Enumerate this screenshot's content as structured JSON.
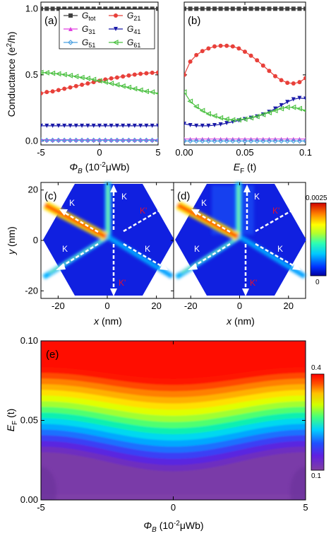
{
  "chart_data": [
    {
      "panel": "(a)",
      "type": "line",
      "xlabel": "Φ_B (10⁻²μWb)",
      "ylabel": "Conductance (e²/h)",
      "xlim": [
        -5,
        5
      ],
      "ylim": [
        -0.03,
        1.05
      ],
      "xticks": [
        "-5",
        "0",
        "5"
      ],
      "yticks": [
        "0.0",
        "0.5",
        "1.0"
      ],
      "legend": "top",
      "x": [
        -5,
        -4.5,
        -4,
        -3.5,
        -3,
        -2.5,
        -2,
        -1.5,
        -1,
        -0.5,
        0,
        0.5,
        1,
        1.5,
        2,
        2.5,
        3,
        3.5,
        4,
        4.5,
        5
      ],
      "series": [
        {
          "name": "G_tot",
          "color": "#404040",
          "marker": "square",
          "values": [
            1.0,
            1.0,
            1.0,
            1.0,
            1.0,
            1.0,
            1.0,
            1.0,
            1.0,
            1.0,
            1.0,
            1.0,
            1.0,
            1.0,
            1.0,
            1.0,
            1.0,
            1.0,
            1.0,
            1.0,
            1.0
          ]
        },
        {
          "name": "G_21",
          "color": "#e8403a",
          "marker": "circle",
          "values": [
            0.36,
            0.37,
            0.375,
            0.385,
            0.395,
            0.405,
            0.415,
            0.425,
            0.435,
            0.445,
            0.455,
            0.465,
            0.473,
            0.48,
            0.488,
            0.495,
            0.502,
            0.508,
            0.512,
            0.516,
            0.518
          ]
        },
        {
          "name": "G_31",
          "color": "#e040e0",
          "marker": "triangle-up",
          "values": [
            0.01,
            0.01,
            0.01,
            0.01,
            0.01,
            0.01,
            0.01,
            0.01,
            0.01,
            0.01,
            0.01,
            0.01,
            0.01,
            0.01,
            0.01,
            0.01,
            0.01,
            0.01,
            0.01,
            0.01,
            0.01
          ]
        },
        {
          "name": "G_41",
          "color": "#1a1aa8",
          "marker": "triangle-down",
          "values": [
            0.115,
            0.115,
            0.115,
            0.115,
            0.115,
            0.115,
            0.115,
            0.115,
            0.115,
            0.115,
            0.115,
            0.115,
            0.115,
            0.115,
            0.115,
            0.115,
            0.115,
            0.115,
            0.115,
            0.115,
            0.115
          ]
        },
        {
          "name": "G_51",
          "color": "#4aa0e0",
          "marker": "diamond",
          "values": [
            0.005,
            0.005,
            0.005,
            0.005,
            0.005,
            0.005,
            0.005,
            0.005,
            0.005,
            0.005,
            0.005,
            0.005,
            0.005,
            0.005,
            0.005,
            0.005,
            0.005,
            0.005,
            0.005,
            0.005,
            0.005
          ]
        },
        {
          "name": "G_61",
          "color": "#4ac040",
          "marker": "triangle-left",
          "values": [
            0.518,
            0.516,
            0.512,
            0.508,
            0.502,
            0.495,
            0.488,
            0.48,
            0.473,
            0.465,
            0.455,
            0.445,
            0.435,
            0.425,
            0.415,
            0.405,
            0.395,
            0.385,
            0.375,
            0.37,
            0.36
          ]
        }
      ]
    },
    {
      "panel": "(b)",
      "type": "line",
      "xlabel": "E_F (t)",
      "ylabel": "",
      "xlim": [
        0,
        0.1
      ],
      "ylim": [
        -0.03,
        1.05
      ],
      "xticks": [
        "0.00",
        "0.05",
        "0.1"
      ],
      "x": [
        0,
        0.005,
        0.01,
        0.015,
        0.02,
        0.025,
        0.03,
        0.035,
        0.04,
        0.045,
        0.05,
        0.055,
        0.06,
        0.065,
        0.07,
        0.075,
        0.08,
        0.085,
        0.09,
        0.095,
        0.1
      ],
      "series": [
        {
          "name": "G_tot",
          "color": "#404040",
          "values": [
            1.0,
            1.0,
            1.0,
            1.0,
            1.0,
            1.0,
            1.0,
            1.0,
            1.0,
            1.0,
            1.0,
            1.0,
            1.0,
            1.0,
            1.0,
            1.0,
            1.0,
            1.0,
            1.0,
            1.0,
            1.0
          ]
        },
        {
          "name": "G_21",
          "color": "#e8403a",
          "values": [
            0.5,
            0.6,
            0.65,
            0.68,
            0.7,
            0.715,
            0.72,
            0.72,
            0.715,
            0.7,
            0.675,
            0.645,
            0.61,
            0.57,
            0.53,
            0.49,
            0.46,
            0.44,
            0.435,
            0.445,
            0.475
          ]
        },
        {
          "name": "G_31",
          "color": "#e040e0",
          "values": [
            0.015,
            0.015,
            0.015,
            0.015,
            0.015,
            0.015,
            0.015,
            0.015,
            0.015,
            0.015,
            0.015,
            0.015,
            0.015,
            0.015,
            0.015,
            0.015,
            0.015,
            0.015,
            0.015,
            0.015,
            0.015
          ]
        },
        {
          "name": "G_41",
          "color": "#1a1aa8",
          "values": [
            0.13,
            0.12,
            0.115,
            0.115,
            0.115,
            0.12,
            0.125,
            0.135,
            0.145,
            0.155,
            0.165,
            0.175,
            0.185,
            0.2,
            0.22,
            0.245,
            0.27,
            0.295,
            0.315,
            0.325,
            0.32
          ]
        },
        {
          "name": "G_51",
          "color": "#4aa0e0",
          "values": [
            0.0,
            0.0,
            0.0,
            0.0,
            0.0,
            0.0,
            0.0,
            0.0,
            0.0,
            0.0,
            0.0,
            0.0,
            0.0,
            0.0,
            0.0,
            0.0,
            0.0,
            0.0,
            0.0,
            0.0,
            0.0
          ]
        },
        {
          "name": "G_61",
          "color": "#4ac040",
          "values": [
            0.37,
            0.3,
            0.26,
            0.23,
            0.205,
            0.19,
            0.175,
            0.165,
            0.16,
            0.16,
            0.165,
            0.175,
            0.185,
            0.2,
            0.215,
            0.23,
            0.245,
            0.255,
            0.255,
            0.245,
            0.23
          ]
        }
      ]
    },
    {
      "panel": "(c)",
      "type": "heatmap",
      "xlabel": "x (nm)",
      "ylabel": "y (nm)",
      "xlim": [
        -27,
        27
      ],
      "ylim": [
        -23,
        23
      ],
      "xticks": [
        "-20",
        "0",
        "20"
      ],
      "yticks": [
        "-20",
        "0",
        "20"
      ]
    },
    {
      "panel": "(d)",
      "type": "heatmap",
      "xlabel": "x (nm)",
      "xlim": [
        -27,
        27
      ],
      "ylim": [
        -23,
        23
      ],
      "xticks": [
        "-20",
        "0",
        "20"
      ],
      "colorbar": {
        "max": "0.0025",
        "min": "0"
      }
    },
    {
      "panel": "(e)",
      "type": "heatmap",
      "xlabel": "Φ_B (10⁻²μWb)",
      "ylabel": "E_F (t)",
      "xlim": [
        -5,
        5
      ],
      "ylim": [
        0,
        0.1
      ],
      "xticks": [
        "-5",
        "0",
        "5"
      ],
      "yticks": [
        "0.00",
        "0.05",
        "0.10"
      ],
      "colorbar": {
        "max": "0.4",
        "min": "0.1"
      }
    }
  ],
  "labels": {
    "a": "(a)",
    "b": "(b)",
    "c": "(c)",
    "d": "(d)",
    "e": "(e)",
    "k": "K",
    "kp": "K'"
  },
  "legend": [
    {
      "sym": "G",
      "sub": "tot"
    },
    {
      "sym": "G",
      "sub": "21"
    },
    {
      "sym": "G",
      "sub": "31"
    },
    {
      "sym": "G",
      "sub": "41"
    },
    {
      "sym": "G",
      "sub": "51"
    },
    {
      "sym": "G",
      "sub": "61"
    }
  ],
  "axes": {
    "cond_ylabel_main": "Conductance (e",
    "cond_ylabel_sup": "2",
    "cond_ylabel_end": "/h)",
    "phi_main": "Φ",
    "phi_sub": "B",
    "phi_unit": " (10",
    "phi_sup": "-2",
    "phi_end": "μWb)",
    "ef_main": "E",
    "ef_sub": "F",
    "ef_end": " (t)",
    "x_nm_var": "x",
    "x_nm_unit": " (nm)",
    "y_nm_var": "y",
    "y_nm_unit": " (nm)"
  },
  "colors": {
    "G_tot": "#404040",
    "G_21": "#e8403a",
    "G_31": "#e040e0",
    "G_41": "#1a1aa8",
    "G_51": "#4aa0e0",
    "G_61": "#4ac040",
    "hex_blue": "#1020e0",
    "beam": "#ff3000",
    "kp_label": "#e01030"
  }
}
